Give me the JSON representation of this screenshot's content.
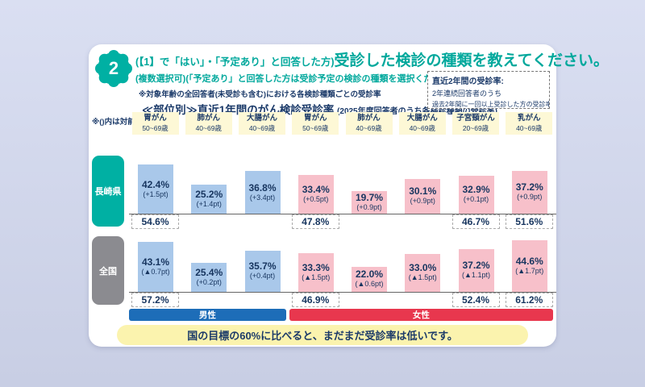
{
  "badge": {
    "number": "2"
  },
  "header": {
    "title_prefix": "(【1】で「はい」・「予定あり」と回答した方)",
    "title_main": "受診した検診の種類を教えてください。",
    "subtitle": "(複数選択可)(「予定あり」と回答した方は受診予定の検診の種類を選択ください)",
    "note": "※対象年齢の全回答者(未受診も含む)における各検診種類ごとの受診率",
    "section_title": "≪部位別≫直近1年間のがん検診受診率",
    "section_title_sub": "(2025年度回答者のうち各検診種類の受診率)",
    "info_box": {
      "line1": "直近2年間の受診率:",
      "line2": "2年連続回答者のうち",
      "line3": "過去2年間に一回以上受診した方の受診率"
    },
    "legend_note": "※()内は対前年"
  },
  "chart_data": {
    "type": "bar",
    "unit": "%",
    "ylim": [
      0,
      70
    ],
    "legend_position": "none",
    "categories": [
      {
        "name": "胃がん",
        "age": "50~69歳",
        "gender": "男性"
      },
      {
        "name": "肺がん",
        "age": "40~69歳",
        "gender": "男性"
      },
      {
        "name": "大腸がん",
        "age": "40~69歳",
        "gender": "男性"
      },
      {
        "name": "胃がん",
        "age": "50~69歳",
        "gender": "女性"
      },
      {
        "name": "肺がん",
        "age": "40~69歳",
        "gender": "女性"
      },
      {
        "name": "大腸がん",
        "age": "40~69歳",
        "gender": "女性"
      },
      {
        "name": "子宮頸がん",
        "age": "20~69歳",
        "gender": "女性"
      },
      {
        "name": "乳がん",
        "age": "40~69歳",
        "gender": "女性"
      }
    ],
    "series": [
      {
        "name": "長崎県",
        "values": [
          42.4,
          25.2,
          36.8,
          33.4,
          19.7,
          30.1,
          32.9,
          37.2
        ],
        "deltas_vs_prev_year": [
          "+1.5pt",
          "+1.4pt",
          "+3.4pt",
          "+0.5pt",
          "+0.9pt",
          "+0.9pt",
          "+0.1pt",
          "+0.9pt"
        ],
        "two_year_rates": [
          "54.6%",
          null,
          null,
          "47.8%",
          null,
          null,
          "46.7%",
          "51.6%"
        ]
      },
      {
        "name": "全国",
        "values": [
          43.1,
          25.4,
          35.7,
          33.3,
          22.0,
          33.0,
          37.2,
          44.6
        ],
        "deltas_vs_prev_year": [
          "▲0.7pt",
          "+0.2pt",
          "+0.4pt",
          "▲1.5pt",
          "▲0.6pt",
          "▲1.5pt",
          "▲1.1pt",
          "▲1.7pt"
        ],
        "two_year_rates": [
          "57.2%",
          null,
          null,
          "46.9%",
          null,
          null,
          "52.4%",
          "61.2%"
        ]
      }
    ],
    "gender_groups": [
      {
        "label": "男性",
        "start": 0,
        "end": 2,
        "color": "#1d6db8"
      },
      {
        "label": "女性",
        "start": 3,
        "end": 7,
        "color": "#e8374e"
      }
    ],
    "bar_colors": {
      "男性": "#a9c8ea",
      "女性": "#f7c0ca"
    },
    "row_label_colors": {
      "長崎県": "#00b0a3",
      "全国": "#8b8b90"
    }
  },
  "footer": {
    "message": "国の目標の60%に比べると、まだまだ受診率は低いです。"
  }
}
